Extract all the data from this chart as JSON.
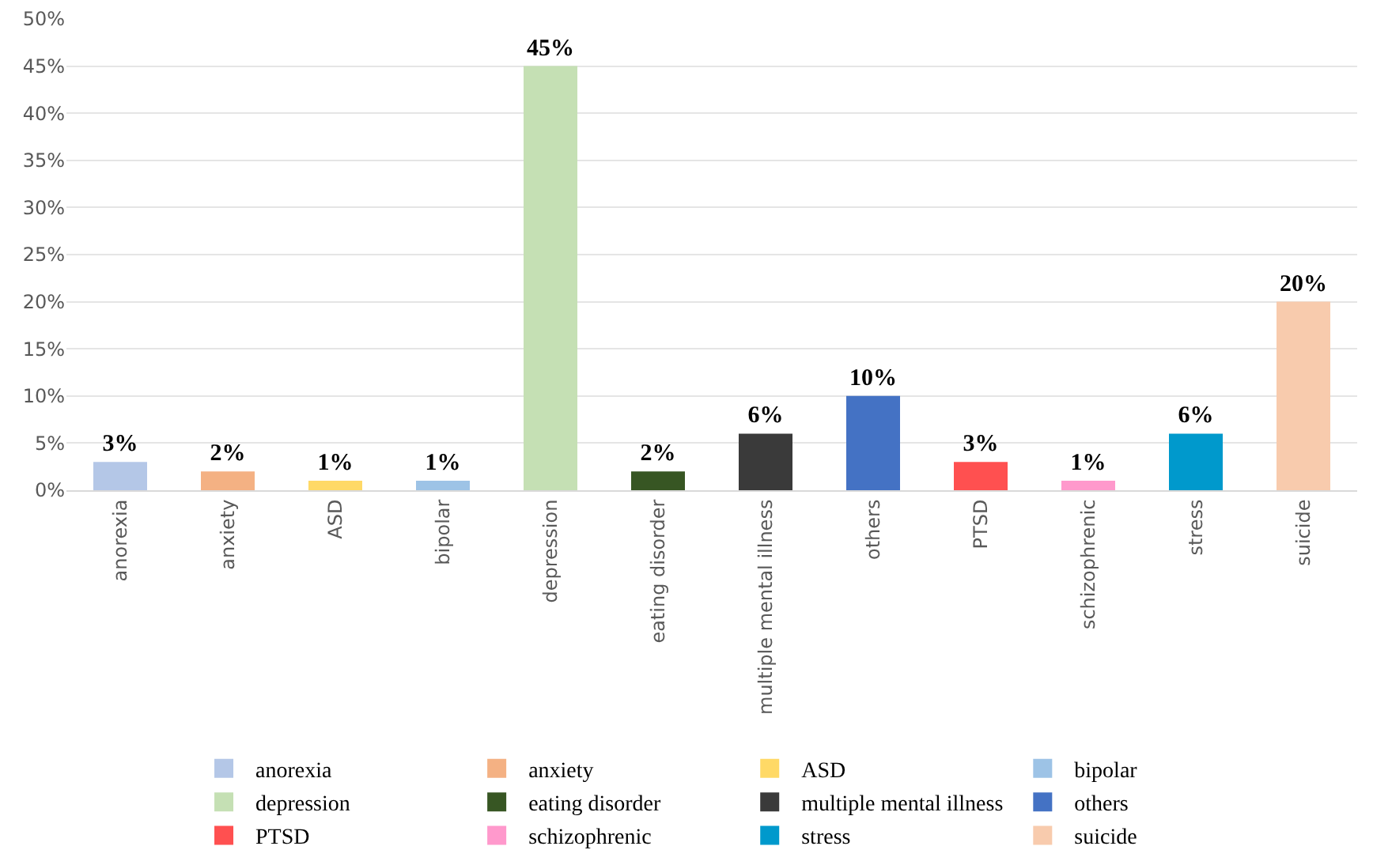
{
  "chart_data": {
    "type": "bar",
    "categories": [
      "anorexia",
      "anxiety",
      "ASD",
      "bipolar",
      "depression",
      "eating disorder",
      "multiple mental illness",
      "others",
      "PTSD",
      "schizophrenic",
      "stress",
      "suicide"
    ],
    "series": [
      {
        "name": "anorexia",
        "color": "#b4c7e7",
        "values": [
          3,
          null,
          null,
          null,
          null,
          null,
          null,
          null,
          null,
          null,
          null,
          null
        ],
        "value_labels": [
          "3%",
          null,
          null,
          null,
          null,
          null,
          null,
          null,
          null,
          null,
          null,
          null
        ]
      },
      {
        "name": "anxiety",
        "color": "#f4b183",
        "values": [
          null,
          2,
          null,
          null,
          null,
          null,
          null,
          null,
          null,
          null,
          null,
          null
        ],
        "value_labels": [
          null,
          "2%",
          null,
          null,
          null,
          null,
          null,
          null,
          null,
          null,
          null,
          null
        ]
      },
      {
        "name": "ASD",
        "color": "#ffd966",
        "values": [
          null,
          null,
          1,
          null,
          null,
          null,
          null,
          null,
          null,
          null,
          null,
          null
        ],
        "value_labels": [
          null,
          null,
          "1%",
          null,
          null,
          null,
          null,
          null,
          null,
          null,
          null,
          null
        ]
      },
      {
        "name": "bipolar",
        "color": "#9dc3e6",
        "values": [
          null,
          null,
          null,
          1,
          null,
          null,
          null,
          null,
          null,
          null,
          null,
          null
        ],
        "value_labels": [
          null,
          null,
          null,
          "1%",
          null,
          null,
          null,
          null,
          null,
          null,
          null,
          null
        ]
      },
      {
        "name": "depression",
        "color": "#c5e0b4",
        "values": [
          null,
          null,
          null,
          null,
          45,
          null,
          null,
          null,
          null,
          null,
          null,
          null
        ],
        "value_labels": [
          null,
          null,
          null,
          null,
          "45%",
          null,
          null,
          null,
          null,
          null,
          null,
          null
        ]
      },
      {
        "name": "eating disorder",
        "color": "#375623",
        "values": [
          null,
          null,
          null,
          null,
          null,
          2,
          null,
          null,
          null,
          null,
          null,
          null
        ],
        "value_labels": [
          null,
          null,
          null,
          null,
          null,
          "2%",
          null,
          null,
          null,
          null,
          null,
          null
        ]
      },
      {
        "name": "multiple mental illness",
        "color": "#3a3a3a",
        "values": [
          null,
          null,
          null,
          null,
          null,
          null,
          6,
          null,
          null,
          null,
          null,
          null
        ],
        "value_labels": [
          null,
          null,
          null,
          null,
          null,
          null,
          "6%",
          null,
          null,
          null,
          null,
          null
        ]
      },
      {
        "name": "others",
        "color": "#4472c4",
        "values": [
          null,
          null,
          null,
          null,
          null,
          null,
          null,
          10,
          null,
          null,
          null,
          null
        ],
        "value_labels": [
          null,
          null,
          null,
          null,
          null,
          null,
          null,
          "10%",
          null,
          null,
          null,
          null
        ]
      },
      {
        "name": "PTSD",
        "color": "#ff5050",
        "values": [
          null,
          null,
          null,
          null,
          null,
          null,
          null,
          null,
          3,
          null,
          null,
          null
        ],
        "value_labels": [
          null,
          null,
          null,
          null,
          null,
          null,
          null,
          null,
          "3%",
          null,
          null,
          null
        ]
      },
      {
        "name": "schizophrenic",
        "color": "#ff99cc",
        "values": [
          null,
          null,
          null,
          null,
          null,
          null,
          null,
          null,
          null,
          1,
          null,
          null
        ],
        "value_labels": [
          null,
          null,
          null,
          null,
          null,
          null,
          null,
          null,
          null,
          "1%",
          null,
          null
        ]
      },
      {
        "name": "stress",
        "color": "#0099cc",
        "values": [
          null,
          null,
          null,
          null,
          null,
          null,
          null,
          null,
          null,
          null,
          6,
          null
        ],
        "value_labels": [
          null,
          null,
          null,
          null,
          null,
          null,
          null,
          null,
          null,
          null,
          "6%",
          null
        ]
      },
      {
        "name": "suicide",
        "color": "#f8cbad",
        "values": [
          null,
          null,
          null,
          null,
          null,
          null,
          null,
          null,
          null,
          null,
          null,
          20
        ],
        "value_labels": [
          null,
          null,
          null,
          null,
          null,
          null,
          null,
          null,
          null,
          null,
          null,
          "20%"
        ]
      }
    ],
    "ylim": [
      0,
      50
    ],
    "yticks": [
      {
        "value": 0,
        "label": "0%"
      },
      {
        "value": 5,
        "label": "5%"
      },
      {
        "value": 10,
        "label": "10%"
      },
      {
        "value": 15,
        "label": "15%"
      },
      {
        "value": 20,
        "label": "20%"
      },
      {
        "value": 25,
        "label": "25%"
      },
      {
        "value": 30,
        "label": "30%"
      },
      {
        "value": 35,
        "label": "35%"
      },
      {
        "value": 40,
        "label": "40%"
      },
      {
        "value": 45,
        "label": "45%"
      },
      {
        "value": 50,
        "label": "50%"
      }
    ],
    "grid": "y",
    "legend": "bottom"
  }
}
